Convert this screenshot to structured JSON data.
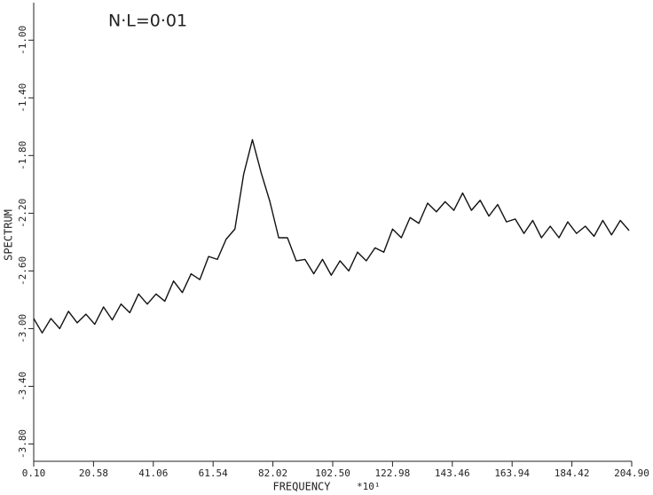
{
  "chart_data": {
    "type": "line",
    "annotation": "N·L=0·01",
    "x_label": "FREQUENCY",
    "x_multiplier": "*10¹",
    "y_label": "SPECTRUM",
    "color": "#111111",
    "x": [
      0.1,
      3,
      6,
      9,
      12,
      15,
      18,
      21,
      24,
      27,
      30,
      33,
      36,
      39,
      42,
      45,
      48,
      51,
      54,
      57,
      60,
      63,
      66,
      69,
      72,
      75,
      78,
      81,
      84,
      87,
      90,
      93,
      96,
      99,
      102,
      105,
      108,
      111,
      114,
      117,
      120,
      123,
      126,
      129,
      132,
      135,
      138,
      141,
      144,
      147,
      150,
      153,
      156,
      159,
      162,
      165,
      168,
      171,
      174,
      177,
      180,
      183,
      186,
      189,
      192,
      195,
      198,
      201,
      204
    ],
    "values": [
      -2.93,
      -3.03,
      -2.93,
      -3.0,
      -2.88,
      -2.96,
      -2.9,
      -2.97,
      -2.85,
      -2.94,
      -2.83,
      -2.89,
      -2.76,
      -2.83,
      -2.76,
      -2.81,
      -2.67,
      -2.75,
      -2.62,
      -2.66,
      -2.5,
      -2.52,
      -2.38,
      -2.31,
      -1.93,
      -1.69,
      -1.92,
      -2.12,
      -2.37,
      -2.37,
      -2.53,
      -2.52,
      -2.62,
      -2.52,
      -2.63,
      -2.53,
      -2.6,
      -2.47,
      -2.53,
      -2.44,
      -2.47,
      -2.31,
      -2.37,
      -2.23,
      -2.27,
      -2.13,
      -2.19,
      -2.12,
      -2.18,
      -2.06,
      -2.18,
      -2.11,
      -2.22,
      -2.14,
      -2.26,
      -2.24,
      -2.34,
      -2.25,
      -2.37,
      -2.29,
      -2.37,
      -2.26,
      -2.34,
      -2.29,
      -2.36,
      -2.25,
      -2.35,
      -2.25,
      -2.32
    ],
    "xlim": [
      0.1,
      204.9
    ],
    "xticks": [
      {
        "value": 0.1,
        "label": "0.10"
      },
      20.58,
      41.06,
      61.54,
      82.02,
      {
        "value": 102.5,
        "label": "102.50"
      },
      122.98,
      143.46,
      163.94,
      184.42,
      {
        "value": 204.9,
        "label": "204.90"
      }
    ],
    "ylim": [
      -3.92,
      -0.74
    ],
    "yticks": [
      {
        "value": -1,
        "label": "-1.00"
      },
      {
        "value": -1.4,
        "label": "-1.40"
      },
      {
        "value": -1.8,
        "label": "-1.80"
      },
      {
        "value": -2.2,
        "label": "-2.20"
      },
      {
        "value": -2.6,
        "label": "-2.60"
      },
      {
        "value": -3,
        "label": "-3.00"
      },
      {
        "value": -3.4,
        "label": "-3.40"
      },
      {
        "value": -3.8,
        "label": "-3.80"
      }
    ]
  }
}
